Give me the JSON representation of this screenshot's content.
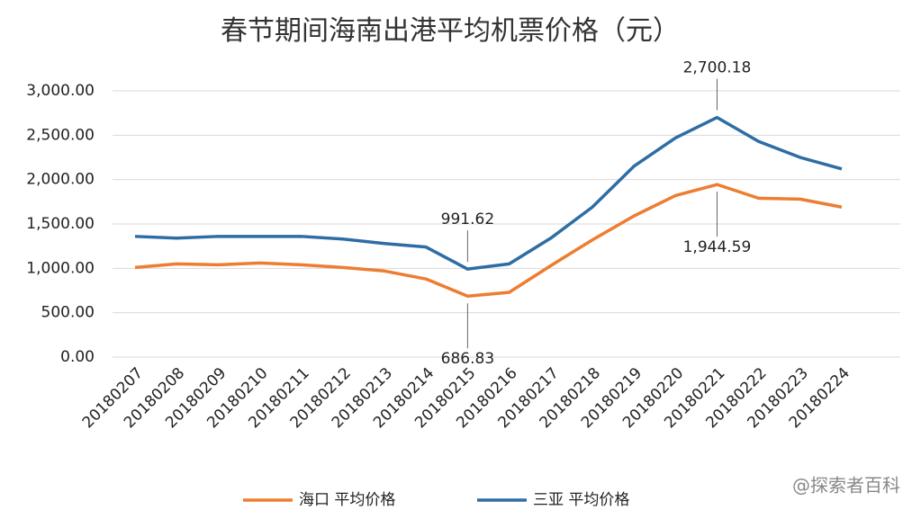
{
  "chart_data": {
    "type": "line",
    "title": "春节期间海南出港平均机票价格（元）",
    "categories": [
      "20180207",
      "20180208",
      "20180209",
      "20180210",
      "20180211",
      "20180212",
      "20180213",
      "20180214",
      "20180215",
      "20180216",
      "20180217",
      "20180218",
      "20180219",
      "20180220",
      "20180221",
      "20180222",
      "20180223",
      "20180224"
    ],
    "series": [
      {
        "name": "海口 平均价格",
        "color": "#ed7d31",
        "values": [
          1010,
          1050,
          1040,
          1060,
          1040,
          1010,
          970,
          880,
          686.83,
          730,
          1030,
          1320,
          1590,
          1820,
          1944.59,
          1790,
          1780,
          1690
        ],
        "value_labels": [
          null,
          null,
          null,
          null,
          null,
          null,
          null,
          null,
          "686.83",
          null,
          null,
          null,
          null,
          null,
          "1,944.59",
          null,
          null,
          null
        ]
      },
      {
        "name": "三亚 平均价格",
        "color": "#2e6da4",
        "values": [
          1360,
          1340,
          1360,
          1360,
          1360,
          1330,
          1280,
          1240,
          991.62,
          1050,
          1340,
          1690,
          2150,
          2470,
          2700.18,
          2430,
          2250,
          2120
        ],
        "value_labels": [
          null,
          null,
          null,
          null,
          null,
          null,
          null,
          null,
          "991.62",
          null,
          null,
          null,
          null,
          null,
          "2,700.18",
          null,
          null,
          null
        ]
      }
    ],
    "ylim": [
      0,
      3000
    ],
    "yticks": [
      {
        "value": 0,
        "label": "0.00"
      },
      {
        "value": 500,
        "label": "500.00"
      },
      {
        "value": 1000,
        "label": "1,000.00"
      },
      {
        "value": 1500,
        "label": "1,500.00"
      },
      {
        "value": 2000,
        "label": "2,000.00"
      },
      {
        "value": 2500,
        "label": "2,500.00"
      },
      {
        "value": 3000,
        "label": "3,000.00"
      }
    ],
    "grid": true,
    "legend": "bottom",
    "watermark": "@探索者百科"
  }
}
